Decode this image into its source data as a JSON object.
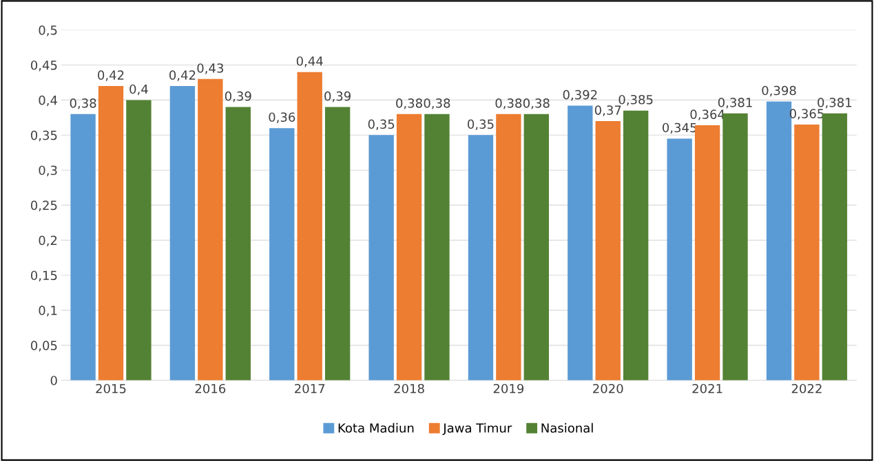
{
  "chart_data": {
    "type": "bar",
    "categories": [
      "2015",
      "2016",
      "2017",
      "2018",
      "2019",
      "2020",
      "2021",
      "2022"
    ],
    "series": [
      {
        "name": "Kota Madiun",
        "color": "#5b9bd5",
        "values": [
          0.38,
          0.42,
          0.36,
          0.35,
          0.35,
          0.392,
          0.345,
          0.398
        ],
        "value_labels": [
          "0,38",
          "0,42",
          "0,36",
          "0,35",
          "0,35",
          "0,392",
          "0,345",
          "0,398"
        ]
      },
      {
        "name": "Jawa Timur",
        "color": "#ed7d31",
        "values": [
          0.42,
          0.43,
          0.44,
          0.38,
          0.38,
          0.37,
          0.364,
          0.365
        ],
        "value_labels": [
          "0,42",
          "0,43",
          "0,44",
          "0,38",
          "0,38",
          "0,37",
          "0,364",
          "0,365"
        ]
      },
      {
        "name": "Nasional",
        "color": "#548235",
        "values": [
          0.4,
          0.39,
          0.39,
          0.38,
          0.38,
          0.385,
          0.381,
          0.381
        ],
        "value_labels": [
          "0,4",
          "0,39",
          "0,39",
          "0,38",
          "0,38",
          "0,385",
          "0,381",
          "0,381"
        ]
      }
    ],
    "ylim": [
      0,
      0.5
    ],
    "yticks": [
      0,
      {
        "value": 0.05,
        "label": "0,05"
      },
      {
        "value": 0.1,
        "label": "0,1"
      },
      {
        "value": 0.15,
        "label": "0,15"
      },
      {
        "value": 0.2,
        "label": "0,2"
      },
      {
        "value": 0.25,
        "label": "0,25"
      },
      {
        "value": 0.3,
        "label": "0,3"
      },
      {
        "value": 0.35,
        "label": "0,35"
      },
      {
        "value": 0.4,
        "label": "0,4"
      },
      {
        "value": 0.45,
        "label": "0,45"
      },
      {
        "value": 0.5,
        "label": "0,5"
      }
    ],
    "grid": "y",
    "legend": "bottom"
  }
}
